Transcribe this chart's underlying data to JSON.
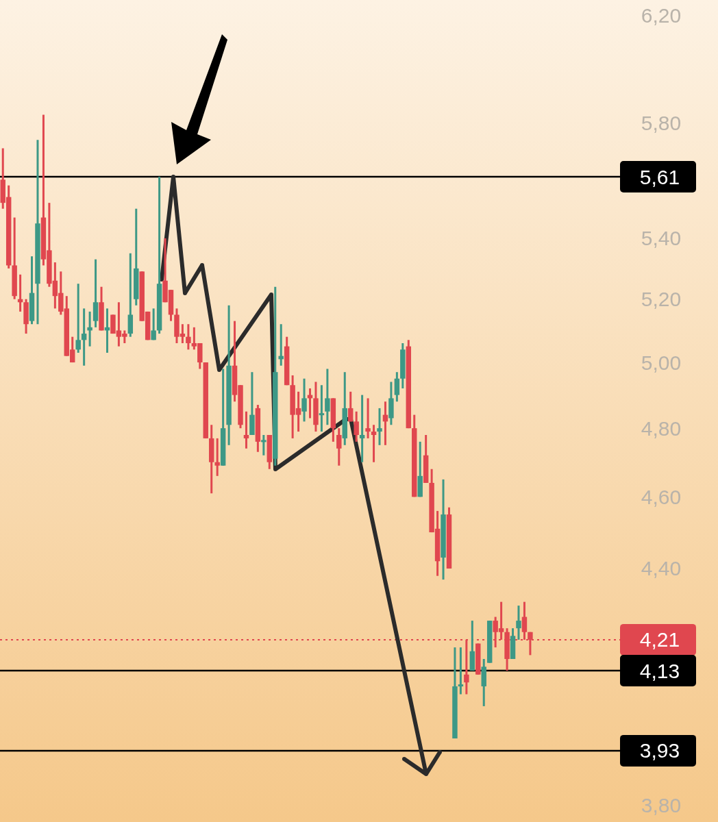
{
  "chart_data": {
    "type": "candlestick",
    "log": true,
    "ylim": [
      3.76,
      6.26
    ],
    "yticks": [
      {
        "value": 3.8,
        "label": "3,80"
      },
      {
        "value": 4.4,
        "label": "4,40"
      },
      {
        "value": 4.6,
        "label": "4,60"
      },
      {
        "value": 4.8,
        "label": "4,80"
      },
      {
        "value": 5.0,
        "label": "5,00"
      },
      {
        "value": 5.2,
        "label": "5,20"
      },
      {
        "value": 5.4,
        "label": "5,40"
      },
      {
        "value": 5.8,
        "label": "5,80"
      },
      {
        "value": 6.2,
        "label": "6,20"
      }
    ],
    "categories": [
      null,
      null,
      null,
      null,
      null,
      null,
      null,
      null,
      null,
      null,
      null,
      null,
      null,
      null,
      null,
      null,
      null,
      null,
      null,
      null,
      null,
      null,
      null,
      null,
      null,
      null,
      null,
      null,
      null,
      null,
      null,
      null,
      null,
      null,
      null,
      null,
      null,
      null,
      null,
      null,
      null,
      null,
      null,
      null,
      null,
      null,
      null,
      null,
      null,
      null,
      null,
      null,
      null,
      null,
      null,
      null,
      null,
      null,
      null,
      null,
      null,
      null,
      null,
      null,
      null,
      null,
      null,
      null,
      null,
      null,
      null,
      null,
      null,
      null,
      null,
      null,
      null,
      null,
      null,
      null,
      null,
      null,
      null,
      null,
      null,
      null,
      null,
      null,
      null,
      null,
      null,
      null,
      null,
      null,
      null,
      null,
      null,
      null,
      null,
      null,
      null,
      null,
      null,
      null,
      null,
      null,
      null
    ],
    "ohlc": [
      [
        5.6,
        5.71,
        5.5,
        5.52
      ],
      [
        5.54,
        5.58,
        5.3,
        5.31
      ],
      [
        5.31,
        5.47,
        5.2,
        5.21
      ],
      [
        5.2,
        5.28,
        5.16,
        5.19
      ],
      [
        5.19,
        5.2,
        5.09,
        5.12
      ],
      [
        5.13,
        5.34,
        5.12,
        5.22
      ],
      [
        5.25,
        5.74,
        5.12,
        5.45
      ],
      [
        5.47,
        5.83,
        5.31,
        5.33
      ],
      [
        5.36,
        5.52,
        5.24,
        5.25
      ],
      [
        5.26,
        5.32,
        5.17,
        5.21
      ],
      [
        5.22,
        5.29,
        5.15,
        5.16
      ],
      [
        5.17,
        5.21,
        5.02,
        5.02
      ],
      [
        5.04,
        5.08,
        5.0,
        5.0
      ],
      [
        5.04,
        5.25,
        5.03,
        5.07
      ],
      [
        5.07,
        5.17,
        4.99,
        5.09
      ],
      [
        5.1,
        5.16,
        5.05,
        5.11
      ],
      [
        5.13,
        5.33,
        5.11,
        5.19
      ],
      [
        5.19,
        5.24,
        5.1,
        5.1
      ],
      [
        5.1,
        5.17,
        5.03,
        5.11
      ],
      [
        5.15,
        5.15,
        5.09,
        5.09
      ],
      [
        5.1,
        5.19,
        5.05,
        5.08
      ],
      [
        5.09,
        5.1,
        5.06,
        5.08
      ],
      [
        5.09,
        5.35,
        5.08,
        5.15
      ],
      [
        5.2,
        5.5,
        5.18,
        5.3
      ],
      [
        5.29,
        5.29,
        5.13,
        5.13
      ],
      [
        5.16,
        5.16,
        5.07,
        5.07
      ],
      [
        5.07,
        5.17,
        5.07,
        5.1
      ],
      [
        5.1,
        5.61,
        5.09,
        5.25
      ],
      [
        5.26,
        5.4,
        5.19,
        5.19
      ],
      [
        5.23,
        5.23,
        5.13,
        5.15
      ],
      [
        5.15,
        5.17,
        5.06,
        5.08
      ],
      [
        5.09,
        5.12,
        5.06,
        5.08
      ],
      [
        5.08,
        5.12,
        5.04,
        5.06
      ],
      [
        5.06,
        5.11,
        5.04,
        5.05
      ],
      [
        5.06,
        5.06,
        4.98,
        5.0
      ],
      [
        5.0,
        5.0,
        4.77,
        4.77
      ],
      [
        4.77,
        4.81,
        4.61,
        4.7
      ],
      [
        4.7,
        4.77,
        4.66,
        4.69
      ],
      [
        4.69,
        4.98,
        4.69,
        4.8
      ],
      [
        4.81,
        5.18,
        4.75,
        4.99
      ],
      [
        4.99,
        5.13,
        4.88,
        4.9
      ],
      [
        4.93,
        4.93,
        4.8,
        4.81
      ],
      [
        4.78,
        4.85,
        4.74,
        4.77
      ],
      [
        4.78,
        4.97,
        4.78,
        4.84
      ],
      [
        4.86,
        4.87,
        4.73,
        4.76
      ],
      [
        4.76,
        4.78,
        4.72,
        4.765
      ],
      [
        4.78,
        4.78,
        4.68,
        4.7
      ],
      [
        4.71,
        5.24,
        4.69,
        4.97
      ],
      [
        5.01,
        5.12,
        4.99,
        5.02
      ],
      [
        5.05,
        5.08,
        4.93,
        4.93
      ],
      [
        4.93,
        4.96,
        4.77,
        4.84
      ],
      [
        4.86,
        4.91,
        4.79,
        4.84
      ],
      [
        4.85,
        4.95,
        4.82,
        4.89
      ],
      [
        4.9,
        4.92,
        4.83,
        4.89
      ],
      [
        4.89,
        4.94,
        4.79,
        4.81
      ],
      [
        4.84,
        4.93,
        4.79,
        4.845
      ],
      [
        4.85,
        4.98,
        4.81,
        4.89
      ],
      [
        4.89,
        4.89,
        4.76,
        4.8
      ],
      [
        4.78,
        4.8,
        4.69,
        4.74
      ],
      [
        4.77,
        4.97,
        4.75,
        4.86
      ],
      [
        4.86,
        4.91,
        4.82,
        4.82
      ],
      [
        4.82,
        4.85,
        4.76,
        4.78
      ],
      [
        4.77,
        4.9,
        4.7,
        4.78
      ],
      [
        4.8,
        4.89,
        4.77,
        4.79
      ],
      [
        4.79,
        4.81,
        4.7,
        4.78
      ],
      [
        4.79,
        4.86,
        4.75,
        4.8
      ],
      [
        4.84,
        4.88,
        4.75,
        4.82
      ],
      [
        4.83,
        4.94,
        4.81,
        4.89
      ],
      [
        4.9,
        4.97,
        4.88,
        4.95
      ],
      [
        4.95,
        5.06,
        4.92,
        5.04
      ],
      [
        5.05,
        5.07,
        4.8,
        4.8
      ],
      [
        4.8,
        4.84,
        4.6,
        4.6
      ],
      [
        4.6,
        4.76,
        4.6,
        4.66
      ],
      [
        4.72,
        4.78,
        4.64,
        4.64
      ],
      [
        4.64,
        4.68,
        4.5,
        4.5
      ],
      [
        4.51,
        4.56,
        4.38,
        4.42
      ],
      [
        4.43,
        4.65,
        4.37,
        4.55
      ],
      [
        4.55,
        4.57,
        4.4,
        4.4
      ],
      [
        3.96,
        4.19,
        3.96,
        4.09
      ],
      [
        4.09,
        4.19,
        4.07,
        4.095
      ],
      [
        4.12,
        4.21,
        4.07,
        4.1
      ],
      [
        4.13,
        4.26,
        4.13,
        4.18
      ],
      [
        4.2,
        4.2,
        4.12,
        4.12
      ],
      [
        4.09,
        4.16,
        4.04,
        4.14
      ],
      [
        4.15,
        4.26,
        4.15,
        4.26
      ],
      [
        4.26,
        4.27,
        4.19,
        4.23
      ],
      [
        4.24,
        4.31,
        4.21,
        4.23
      ],
      [
        4.23,
        4.24,
        4.13,
        4.16
      ],
      [
        4.16,
        4.24,
        4.16,
        4.22
      ],
      [
        4.24,
        4.3,
        4.21,
        4.26
      ],
      [
        4.27,
        4.31,
        4.21,
        4.23
      ],
      [
        4.23,
        4.23,
        4.17,
        4.21
      ],
      null,
      null,
      null,
      null,
      null,
      null,
      null,
      null,
      null,
      null,
      null,
      null,
      null,
      null,
      null
    ],
    "colors": [
      "#e0474f",
      "#e0474f",
      "#e0474f",
      "#e0474f",
      "#e0474f",
      "#3d9886",
      "#3d9886",
      "#e0474f",
      "#e0474f",
      "#e0474f",
      "#e0474f",
      "#e0474f",
      "#e0474f",
      "#3d9886",
      "#3d9886",
      "#3d9886",
      "#3d9886",
      "#e0474f",
      "#3d9886",
      "#e0474f",
      "#e0474f",
      "#e0474f",
      "#3d9886",
      "#3d9886",
      "#e0474f",
      "#e0474f",
      "#3d9886",
      "#3d9886",
      "#e0474f",
      "#e0474f",
      "#e0474f",
      "#e0474f",
      "#e0474f",
      "#e0474f",
      "#e0474f",
      "#e0474f",
      "#e0474f",
      "#e0474f",
      "#3d9886",
      "#3d9886",
      "#e0474f",
      "#e0474f",
      "#e0474f",
      "#3d9886",
      "#e0474f",
      "#3d9886",
      "#e0474f",
      "#3d9886",
      "#3d9886",
      "#e0474f",
      "#e0474f",
      "#e0474f",
      "#3d9886",
      "#e0474f",
      "#e0474f",
      "#3d9886",
      "#3d9886",
      "#e0474f",
      "#e0474f",
      "#3d9886",
      "#e0474f",
      "#e0474f",
      "#3d9886",
      "#e0474f",
      "#e0474f",
      "#3d9886",
      "#e0474f",
      "#3d9886",
      "#3d9886",
      "#3d9886",
      "#e0474f",
      "#e0474f",
      "#3d9886",
      "#e0474f",
      "#e0474f",
      "#e0474f",
      "#3d9886",
      "#e0474f",
      "#3d9886",
      "#3d9886",
      "#e0474f",
      "#3d9886",
      "#e0474f",
      "#3d9886",
      "#3d9886",
      "#e0474f",
      "#e0474f",
      "#e0474f",
      "#3d9886",
      "#3d9886",
      "#e0474f",
      "#e0474f",
      null,
      null,
      null,
      null,
      null,
      null,
      null,
      null,
      null,
      null,
      null,
      null,
      null,
      null,
      null
    ],
    "ref_lines": [
      {
        "axis": "y",
        "value": 5.61,
        "label": "5,61",
        "color": "#000000",
        "line_style": "solid"
      },
      {
        "axis": "y",
        "value": 4.21,
        "label": "4,21",
        "color": "#e0474f",
        "line_style": "dotted"
      },
      {
        "axis": "y",
        "value": 4.13,
        "label": "4,13",
        "color": "#000000",
        "line_style": "solid"
      },
      {
        "axis": "y",
        "value": 3.93,
        "label": "3,93",
        "color": "#000000",
        "line_style": "solid"
      }
    ]
  }
}
